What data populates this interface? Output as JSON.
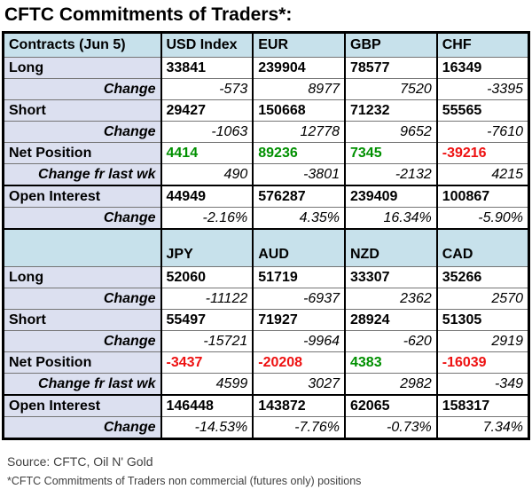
{
  "chart_data": {
    "type": "table",
    "title": "CFTC Commitments of Traders*:",
    "source": "Source: CFTC, Oil N' Gold",
    "footnote": "*CFTC Commitments of Traders non commercial (futures only) positions",
    "sections": [
      {
        "corner_label": "Contracts (Jun 5)",
        "columns": [
          "USD Index",
          "EUR",
          "GBP",
          "CHF"
        ],
        "rows": [
          {
            "label": "Long",
            "style": "value",
            "values": [
              "33841",
              "239904",
              "78577",
              "16349"
            ]
          },
          {
            "label": "Change",
            "style": "change",
            "values": [
              "-573",
              "8977",
              "7520",
              "-3395"
            ]
          },
          {
            "label": "Short",
            "style": "value",
            "values": [
              "29427",
              "150668",
              "71232",
              "55565"
            ]
          },
          {
            "label": "Change",
            "style": "change",
            "values": [
              "-1063",
              "12778",
              "9652",
              "-7610"
            ]
          },
          {
            "label": "Net Position",
            "style": "net",
            "values": [
              "4414",
              "89236",
              "7345",
              "-39216"
            ]
          },
          {
            "label": "Change fr last wk",
            "style": "change",
            "values": [
              "490",
              "-3801",
              "-2132",
              "4215"
            ]
          },
          {
            "label": "Open Interest",
            "style": "value",
            "values": [
              "44949",
              "576287",
              "239409",
              "100867"
            ]
          },
          {
            "label": "Change",
            "style": "change",
            "values": [
              "-2.16%",
              "4.35%",
              "16.34%",
              "-5.90%"
            ]
          }
        ]
      },
      {
        "corner_label": "",
        "columns": [
          "JPY",
          "AUD",
          "NZD",
          "CAD"
        ],
        "rows": [
          {
            "label": "Long",
            "style": "value",
            "values": [
              "52060",
              "51719",
              "33307",
              "35266"
            ]
          },
          {
            "label": "Change",
            "style": "change",
            "values": [
              "-11122",
              "-6937",
              "2362",
              "2570"
            ]
          },
          {
            "label": "Short",
            "style": "value",
            "values": [
              "55497",
              "71927",
              "28924",
              "51305"
            ]
          },
          {
            "label": "Change",
            "style": "change",
            "values": [
              "-15721",
              "-9964",
              "-620",
              "2919"
            ]
          },
          {
            "label": "Net Position",
            "style": "net",
            "values": [
              "-3437",
              "-20208",
              "4383",
              "-16039"
            ]
          },
          {
            "label": "Change fr last wk",
            "style": "change",
            "values": [
              "4599",
              "3027",
              "2982",
              "-349"
            ]
          },
          {
            "label": "Open Interest",
            "style": "value",
            "values": [
              "146448",
              "143872",
              "62065",
              "158317"
            ]
          },
          {
            "label": "Change",
            "style": "change",
            "values": [
              "-14.53%",
              "-7.76%",
              "-0.73%",
              "7.34%"
            ]
          }
        ]
      }
    ]
  },
  "colors": {
    "positive": "#009000",
    "negative": "#ee1111",
    "header_bg": "#c7e1eb",
    "label_bg": "#dce0f0"
  }
}
